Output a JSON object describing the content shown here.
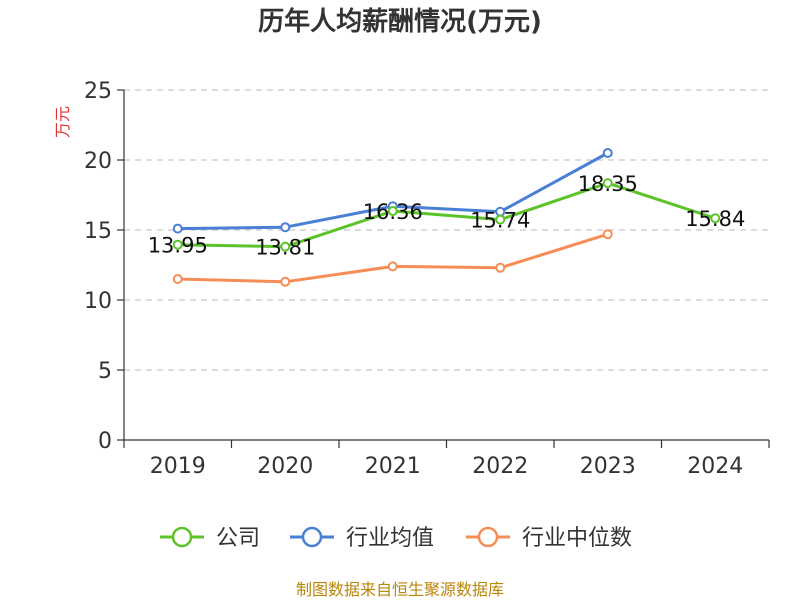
{
  "chart_data": {
    "type": "line",
    "title": "历年人均薪酬情况(万元)",
    "ylabel": "万元",
    "xlabel": "",
    "categories": [
      "2019",
      "2020",
      "2021",
      "2022",
      "2023",
      "2024"
    ],
    "ylim": [
      0,
      25
    ],
    "yticks": [
      0,
      5,
      10,
      15,
      20,
      25
    ],
    "grid": true,
    "legend_position": "bottom",
    "series": [
      {
        "name": "公司",
        "color": "#5cc42a",
        "values": [
          13.95,
          13.81,
          16.36,
          15.74,
          18.35,
          15.84
        ],
        "labels": [
          "13.95",
          "13.81",
          "16.36",
          "15.74",
          "18.35",
          "15.84"
        ]
      },
      {
        "name": "行业均值",
        "color": "#4a7fd6",
        "values": [
          15.1,
          15.2,
          16.7,
          16.3,
          20.5,
          null
        ]
      },
      {
        "name": "行业中位数",
        "color": "#f68d57",
        "values": [
          11.5,
          11.3,
          12.4,
          12.3,
          14.7,
          null
        ]
      }
    ]
  },
  "footer": "制图数据来自恒生聚源数据库"
}
